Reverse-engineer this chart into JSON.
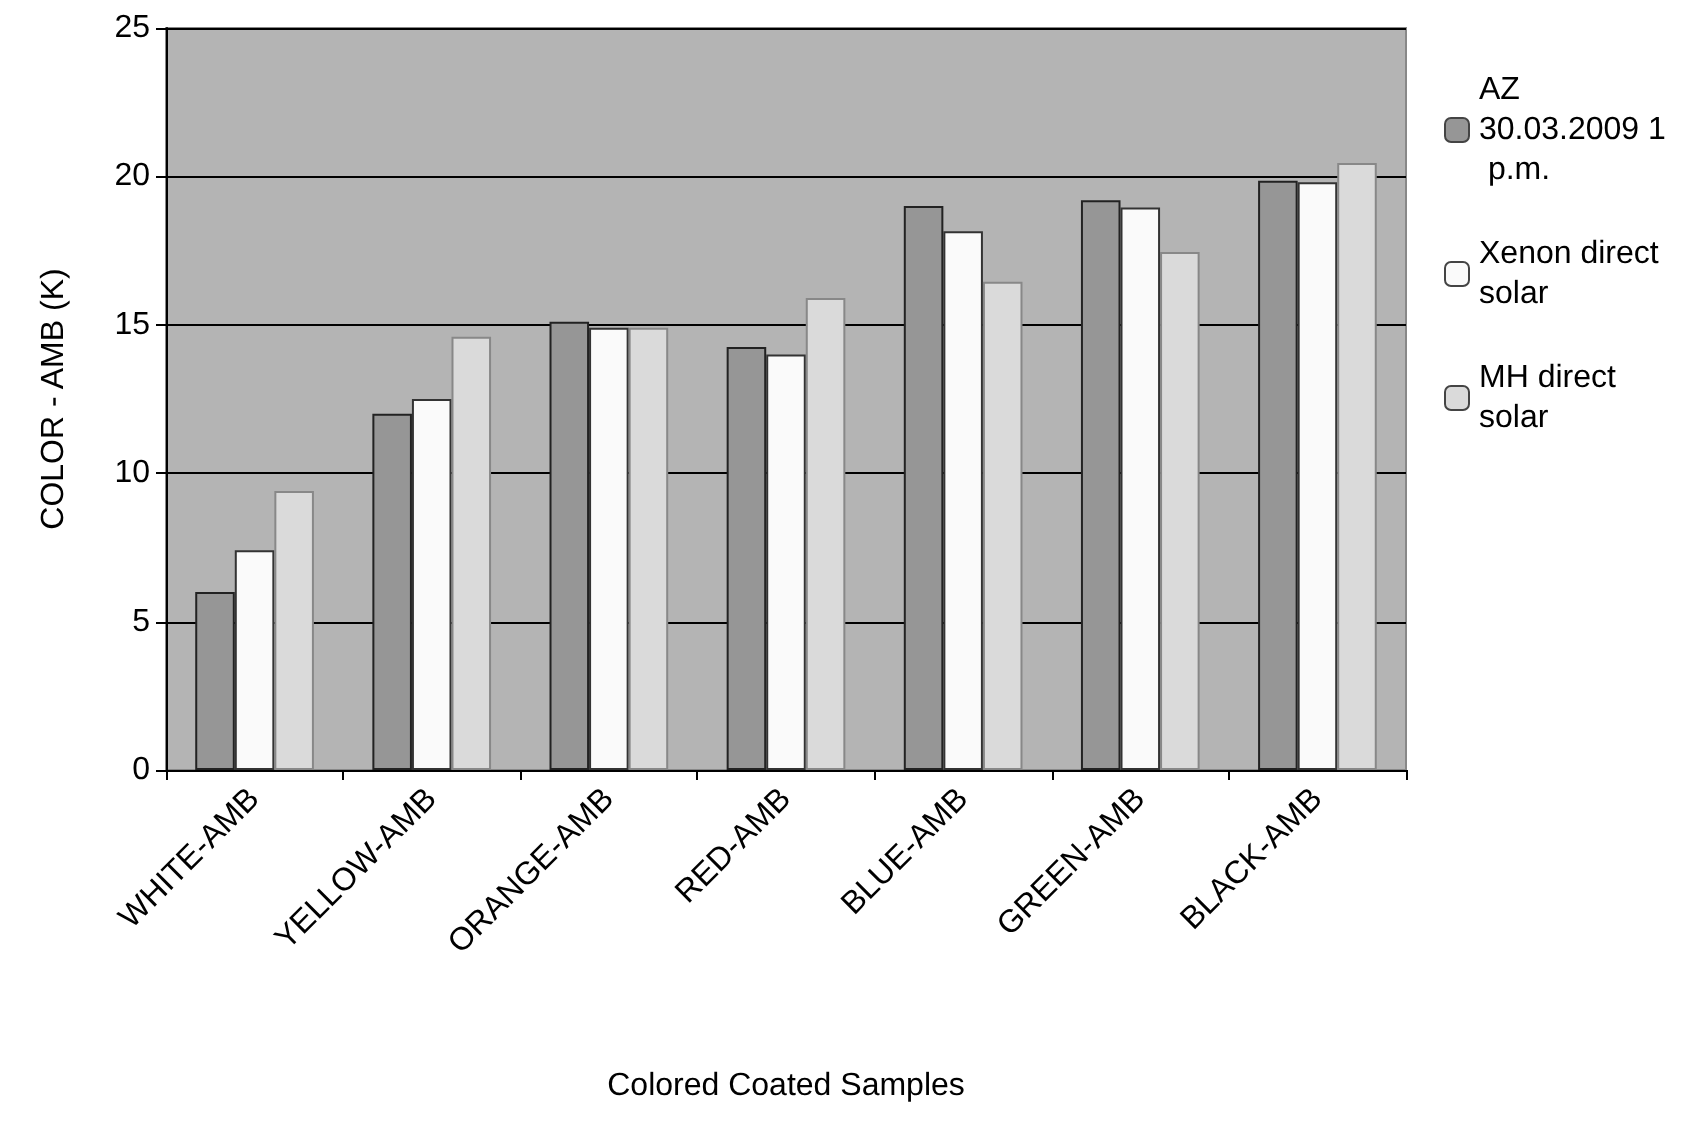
{
  "chart_data": {
    "type": "bar",
    "xlabel": "Colored Coated Samples",
    "ylabel": "COLOR - AMB (K)",
    "categories": [
      "WHITE-AMB",
      "YELLOW-AMB",
      "ORANGE-AMB",
      "RED-AMB",
      "BLUE-AMB",
      "GREEN-AMB",
      "BLACK-AMB"
    ],
    "series": [
      {
        "name": "AZ 30.03.2009 1 p.m.",
        "color": "#969696",
        "values": [
          6.0,
          12.0,
          15.1,
          14.25,
          19.0,
          19.2,
          19.85
        ]
      },
      {
        "name": "Xenon direct solar",
        "color": "#fafafa",
        "values": [
          7.4,
          12.5,
          14.9,
          14.0,
          18.15,
          18.95,
          19.8
        ]
      },
      {
        "name": "MH direct solar",
        "color": "#dadada",
        "values": [
          9.4,
          14.6,
          14.9,
          15.9,
          16.45,
          17.45,
          20.45
        ]
      }
    ],
    "ylim": [
      0,
      25
    ],
    "yticks": [
      0,
      5,
      10,
      15,
      20,
      25
    ],
    "grid": "y",
    "legend": "right"
  }
}
